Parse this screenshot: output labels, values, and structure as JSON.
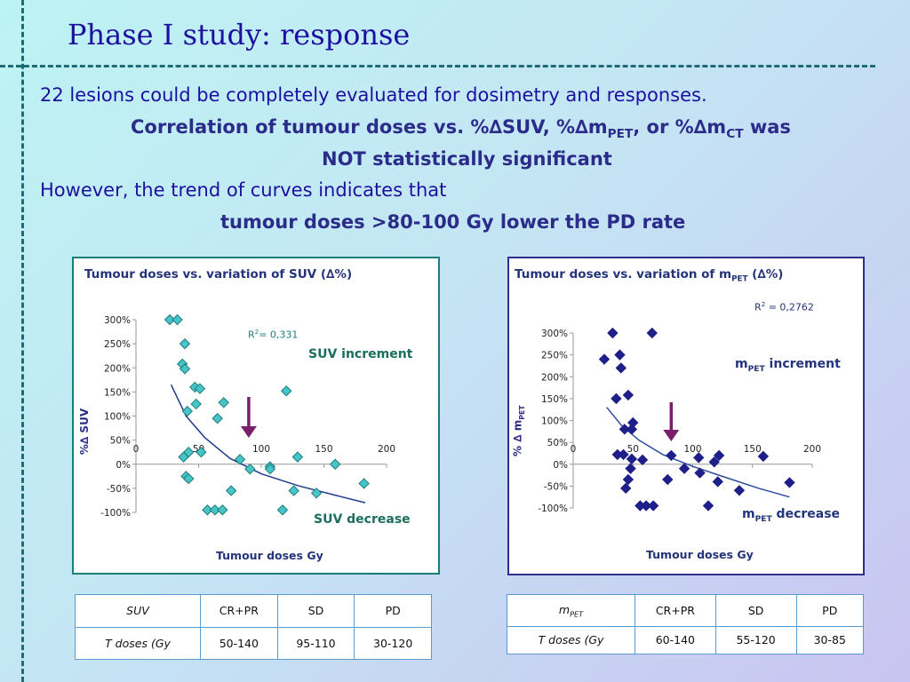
{
  "title": "Phase I study: response",
  "text": {
    "line1": "22 lesions could be completely evaluated for dosimetry and responses.",
    "line2_a": "Correlation of tumour doses vs. %∆SUV, %∆m",
    "line2_sub1": "PET",
    "line2_b": ", or %∆m",
    "line2_sub2": "CT",
    "line2_c": " was",
    "line3": "NOT statistically significant",
    "line4": "However, the trend of curves indicates that",
    "line5": "tumour doses >80-100 Gy lower the PD rate"
  },
  "colors": {
    "suv_marker": "#46c4c8",
    "mpet_marker": "#1f1f8a",
    "arrow": "#7a1f6b",
    "suv_text": "#1b6e5e",
    "mpet_text": "#23347a"
  },
  "chart_data": [
    {
      "type": "scatter",
      "title_a": "Tumour doses vs. variation of SUV (",
      "title_delta": "∆%",
      "title_b": ")",
      "r2_a": "R",
      "r2_sup": "2",
      "r2_b": "= 0,331",
      "annotation_top": "SUV increment",
      "annotation_bottom": "SUV decrease",
      "xlabel": "Tumour doses Gy",
      "ylabel": "%∆ SUV",
      "xlim": [
        0,
        200
      ],
      "ylim": [
        -100,
        300
      ],
      "xticks": [
        "0",
        "50",
        "100",
        "150",
        "200"
      ],
      "yticks": [
        "300%",
        "250%",
        "200%",
        "150%",
        "100%",
        "50%",
        "0%",
        "-50%",
        "-100%"
      ],
      "points": [
        [
          27,
          300
        ],
        [
          33,
          300
        ],
        [
          39,
          250
        ],
        [
          37,
          208
        ],
        [
          39,
          198
        ],
        [
          41,
          110
        ],
        [
          40,
          -25
        ],
        [
          42,
          25
        ],
        [
          42,
          -30
        ],
        [
          38,
          15
        ],
        [
          47,
          160
        ],
        [
          51,
          157
        ],
        [
          48,
          125
        ],
        [
          52,
          25
        ],
        [
          57,
          -95
        ],
        [
          63,
          -95
        ],
        [
          65,
          95
        ],
        [
          69,
          -95
        ],
        [
          70,
          128
        ],
        [
          76,
          -55
        ],
        [
          83,
          10
        ],
        [
          91,
          -10
        ],
        [
          107,
          -5
        ],
        [
          107,
          -10
        ],
        [
          117,
          -95
        ],
        [
          120,
          152
        ],
        [
          126,
          -55
        ],
        [
          129,
          15
        ],
        [
          144,
          -60
        ],
        [
          159,
          0
        ],
        [
          182,
          -40
        ]
      ],
      "trend": [
        [
          28,
          165
        ],
        [
          40,
          100
        ],
        [
          55,
          55
        ],
        [
          75,
          12
        ],
        [
          100,
          -20
        ],
        [
          130,
          -45
        ],
        [
          160,
          -65
        ],
        [
          183,
          -80
        ]
      ]
    },
    {
      "type": "scatter",
      "title_a": "Tumour doses vs. variation of m",
      "title_sub": "PET",
      "title_b": " (",
      "title_delta": "∆%",
      "title_c": ")",
      "r2_a": "R",
      "r2_sup": "2",
      "r2_b": " = 0,2762",
      "annotation_top_a": "m",
      "annotation_top_sub": "PET",
      "annotation_top_b": " increment",
      "annotation_bottom_a": "m",
      "annotation_bottom_sub": "PET",
      "annotation_bottom_b": " decrease",
      "xlabel": "Tumour doses Gy",
      "ylabel_a": "% ∆ m",
      "ylabel_sub": "PET",
      "xlim": [
        0,
        200
      ],
      "ylim": [
        -100,
        300
      ],
      "xticks": [
        "0",
        "50",
        "100",
        "150",
        "200"
      ],
      "yticks": [
        "300%",
        "250%",
        "200%",
        "150%",
        "100%",
        "50%",
        "0%",
        "-50%",
        "-100%"
      ],
      "points": [
        [
          33,
          300
        ],
        [
          26,
          240
        ],
        [
          39,
          250
        ],
        [
          40,
          220
        ],
        [
          36,
          150
        ],
        [
          46,
          158
        ],
        [
          43,
          80
        ],
        [
          50,
          95
        ],
        [
          49,
          80
        ],
        [
          37,
          22
        ],
        [
          42,
          22
        ],
        [
          49,
          12
        ],
        [
          48,
          -10
        ],
        [
          46,
          -35
        ],
        [
          44,
          -55
        ],
        [
          58,
          10
        ],
        [
          56,
          -95
        ],
        [
          61,
          -95
        ],
        [
          67,
          -95
        ],
        [
          66,
          300
        ],
        [
          79,
          -35
        ],
        [
          82,
          20
        ],
        [
          93,
          -10
        ],
        [
          105,
          15
        ],
        [
          106,
          -20
        ],
        [
          113,
          -95
        ],
        [
          118,
          5
        ],
        [
          122,
          20
        ],
        [
          121,
          -40
        ],
        [
          139,
          -60
        ],
        [
          159,
          18
        ],
        [
          181,
          -42
        ]
      ],
      "trend": [
        [
          28,
          130
        ],
        [
          40,
          90
        ],
        [
          55,
          55
        ],
        [
          75,
          22
        ],
        [
          100,
          -5
        ],
        [
          125,
          -28
        ],
        [
          155,
          -55
        ],
        [
          181,
          -75
        ]
      ]
    }
  ],
  "tables": [
    {
      "header_label": "SUV",
      "columns": [
        "CR+PR",
        "SD",
        "PD"
      ],
      "row_label": "T doses (Gy",
      "values": [
        "50-140",
        "95-110",
        "30-120"
      ]
    },
    {
      "header_label_a": "m",
      "header_label_sub": "PET",
      "columns": [
        "CR+PR",
        "SD",
        "PD"
      ],
      "row_label": "T doses (Gy",
      "values": [
        "60-140",
        "55-120",
        "30-85"
      ]
    }
  ]
}
